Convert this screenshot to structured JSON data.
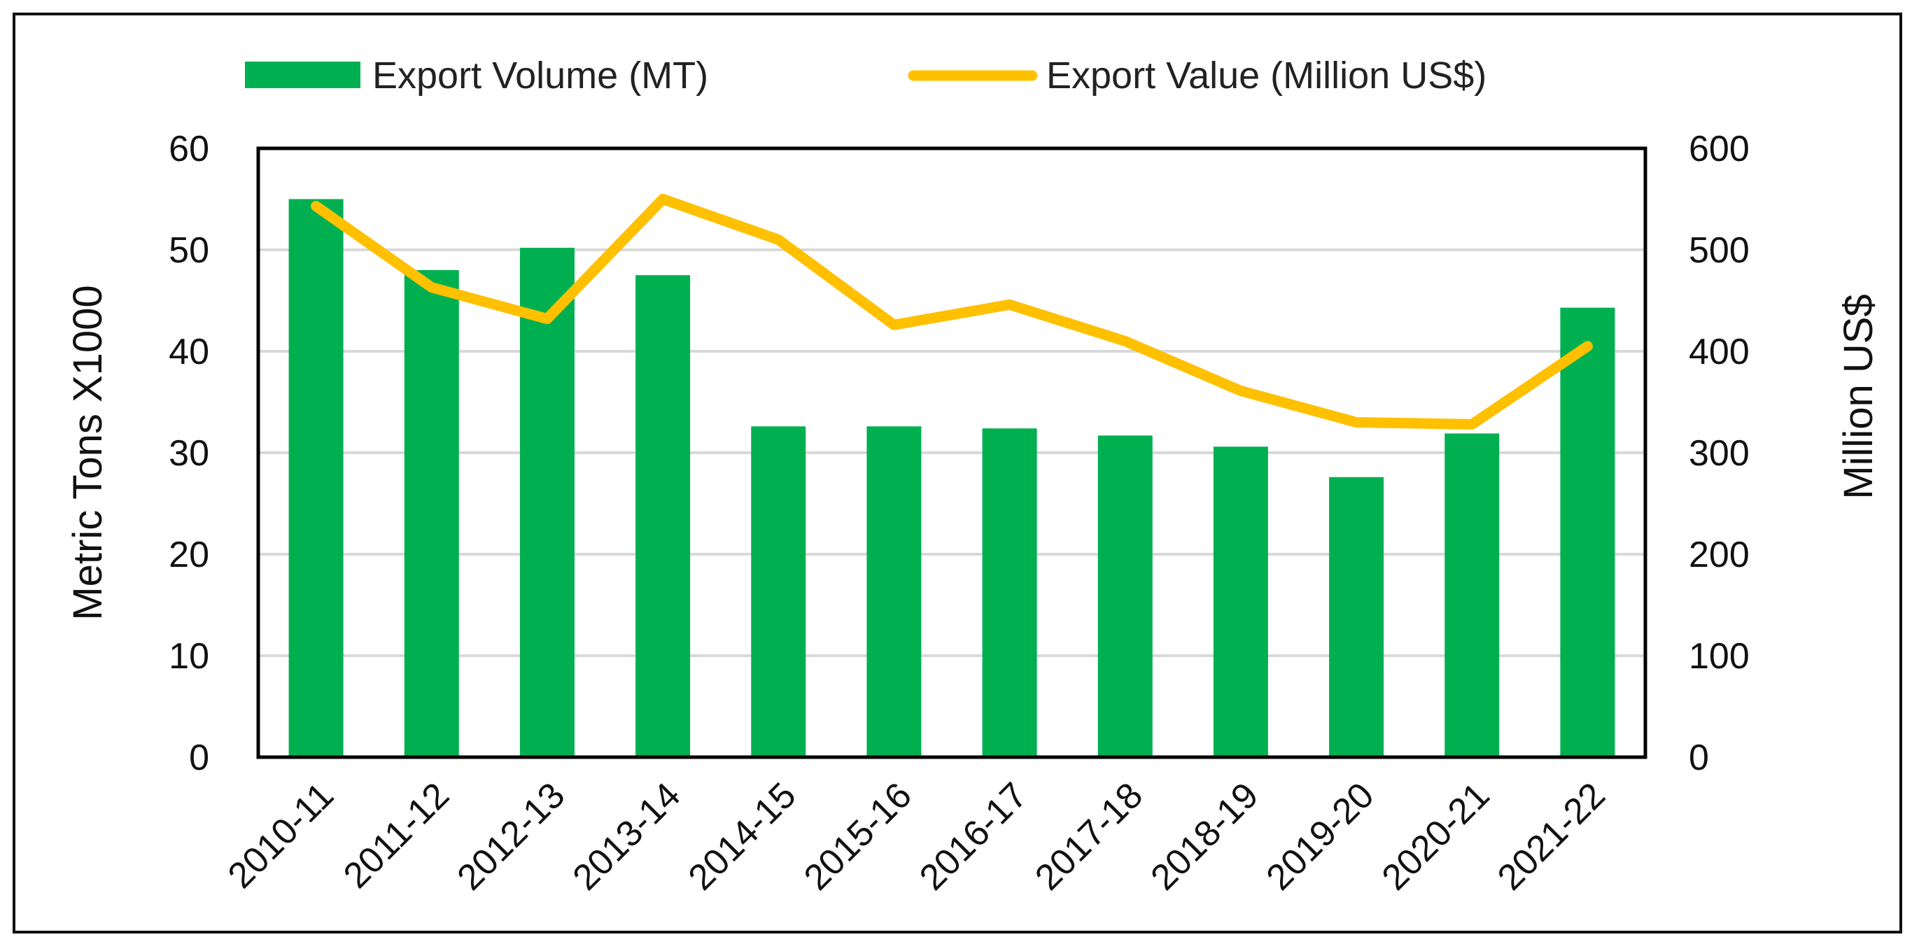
{
  "chart_data": {
    "type": "bar",
    "categories": [
      "2010-11",
      "2011-12",
      "2012-13",
      "2013-14",
      "2014-15",
      "2015-16",
      "2016-17",
      "2017-18",
      "2018-19",
      "2019-20",
      "2020-21",
      "2021-22"
    ],
    "series": [
      {
        "name": "Export Volume (MT)",
        "type": "bar",
        "axis": "left",
        "color": "#00b050",
        "values": [
          55,
          48,
          50.2,
          47.5,
          32.6,
          32.6,
          32.4,
          31.7,
          30.6,
          27.6,
          31.9,
          44.3
        ]
      },
      {
        "name": "Export Value (Million US$)",
        "type": "line",
        "axis": "right",
        "color": "#ffc000",
        "values": [
          543,
          463,
          432,
          550,
          510,
          426,
          446,
          410,
          361,
          330,
          328,
          405
        ]
      }
    ],
    "ylabel": "Metric Tons X1000",
    "y2label": "Million US$",
    "ylim": [
      0,
      60
    ],
    "y2lim": [
      0,
      600
    ],
    "yticks": [
      "0",
      "10",
      "20",
      "30",
      "40",
      "50",
      "60"
    ],
    "y2ticks": [
      "0",
      "100",
      "200",
      "300",
      "400",
      "500",
      "600"
    ],
    "grid": true,
    "legend_position": "top"
  }
}
